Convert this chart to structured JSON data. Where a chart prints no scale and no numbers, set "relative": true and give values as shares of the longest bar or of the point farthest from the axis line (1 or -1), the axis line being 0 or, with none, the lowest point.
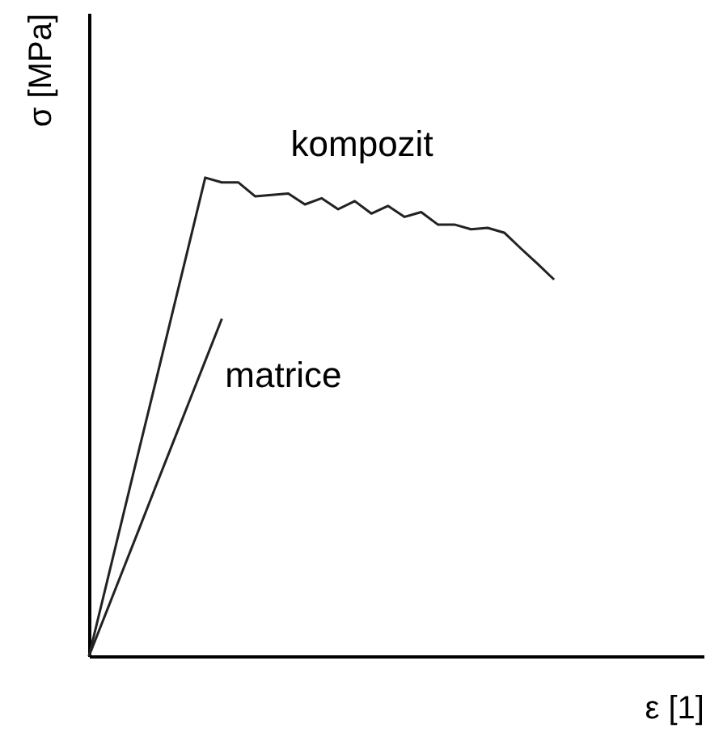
{
  "chart_data": {
    "type": "line",
    "relative": true,
    "xlabel": "ε [1]",
    "ylabel": "σ [MPa]",
    "grid": false,
    "legend": false,
    "marker": "none",
    "line_style": "solid",
    "categories": [
      null,
      null,
      null,
      null,
      null,
      null,
      null,
      null,
      null,
      null,
      null,
      null,
      null,
      null,
      null,
      null,
      null,
      null,
      null,
      null,
      null,
      null,
      null,
      null,
      null,
      null,
      null,
      null,
      null,
      null,
      null,
      null,
      null,
      null,
      null,
      null,
      null,
      null
    ],
    "series": [
      {
        "name": "kompozit",
        "color": "#222222",
        "values": [
          0,
          0.143,
          0.286,
          0.429,
          0.571,
          0.714,
          0.857,
          1,
          0.99,
          0.99,
          0.961,
          0.964,
          0.967,
          0.944,
          0.957,
          0.934,
          0.951,
          0.925,
          0.941,
          0.918,
          0.928,
          0.902,
          0.902,
          0.892,
          0.895,
          0.885,
          0.852,
          0.82,
          0.787,
          null,
          null,
          null,
          null,
          null,
          null,
          null,
          null,
          null
        ]
      },
      {
        "name": "matrice",
        "color": "#222222",
        "values": [
          0,
          0.088,
          0.176,
          0.264,
          0.353,
          0.441,
          0.529,
          0.617,
          0.705,
          null,
          null,
          null,
          null,
          null,
          null,
          null,
          null,
          null,
          null,
          null,
          null,
          null,
          null,
          null,
          null,
          null,
          null,
          null,
          null,
          null,
          null,
          null,
          null,
          null,
          null,
          null,
          null,
          null
        ]
      }
    ]
  }
}
